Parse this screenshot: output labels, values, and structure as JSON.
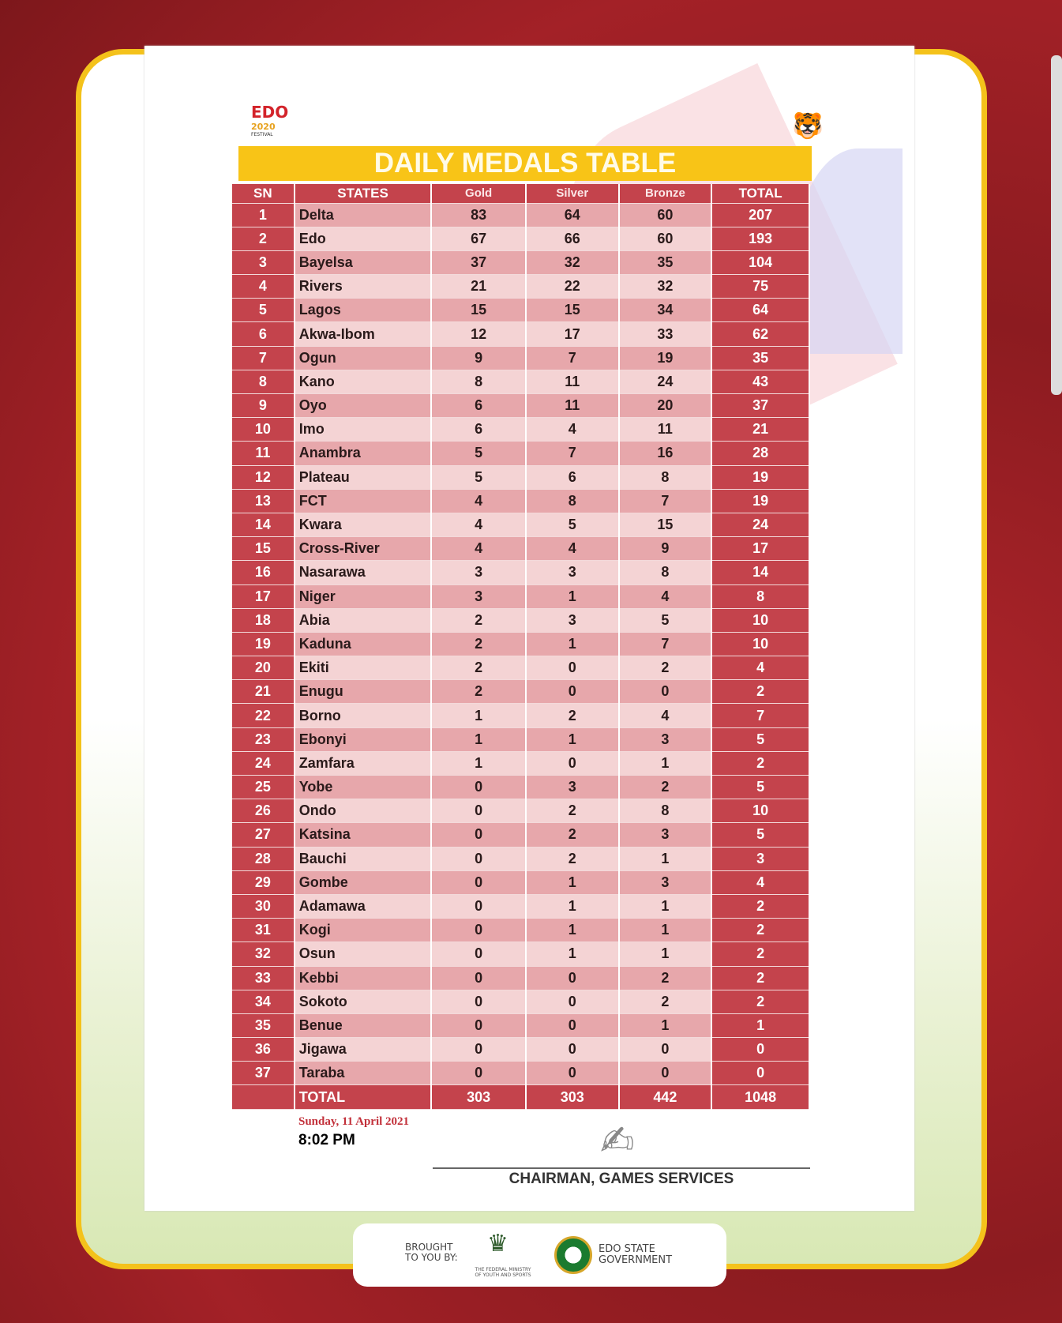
{
  "logo": {
    "text": "EDO",
    "year": "2020",
    "sub": "FESTIVAL"
  },
  "title": "DAILY MEDALS TABLE",
  "headers": [
    "SN",
    "STATES",
    "Gold",
    "Silver",
    "Bronze",
    "TOTAL"
  ],
  "rows": [
    [
      "1",
      "Delta",
      "83",
      "64",
      "60",
      "207"
    ],
    [
      "2",
      "Edo",
      "67",
      "66",
      "60",
      "193"
    ],
    [
      "3",
      "Bayelsa",
      "37",
      "32",
      "35",
      "104"
    ],
    [
      "4",
      "Rivers",
      "21",
      "22",
      "32",
      "75"
    ],
    [
      "5",
      "Lagos",
      "15",
      "15",
      "34",
      "64"
    ],
    [
      "6",
      "Akwa-Ibom",
      "12",
      "17",
      "33",
      "62"
    ],
    [
      "7",
      "Ogun",
      "9",
      "7",
      "19",
      "35"
    ],
    [
      "8",
      "Kano",
      "8",
      "11",
      "24",
      "43"
    ],
    [
      "9",
      "Oyo",
      "6",
      "11",
      "20",
      "37"
    ],
    [
      "10",
      "Imo",
      "6",
      "4",
      "11",
      "21"
    ],
    [
      "11",
      "Anambra",
      "5",
      "7",
      "16",
      "28"
    ],
    [
      "12",
      "Plateau",
      "5",
      "6",
      "8",
      "19"
    ],
    [
      "13",
      "FCT",
      "4",
      "8",
      "7",
      "19"
    ],
    [
      "14",
      "Kwara",
      "4",
      "5",
      "15",
      "24"
    ],
    [
      "15",
      "Cross-River",
      "4",
      "4",
      "9",
      "17"
    ],
    [
      "16",
      "Nasarawa",
      "3",
      "3",
      "8",
      "14"
    ],
    [
      "17",
      "Niger",
      "3",
      "1",
      "4",
      "8"
    ],
    [
      "18",
      "Abia",
      "2",
      "3",
      "5",
      "10"
    ],
    [
      "19",
      "Kaduna",
      "2",
      "1",
      "7",
      "10"
    ],
    [
      "20",
      "Ekiti",
      "2",
      "0",
      "2",
      "4"
    ],
    [
      "21",
      "Enugu",
      "2",
      "0",
      "0",
      "2"
    ],
    [
      "22",
      "Borno",
      "1",
      "2",
      "4",
      "7"
    ],
    [
      "23",
      "Ebonyi",
      "1",
      "1",
      "3",
      "5"
    ],
    [
      "24",
      "Zamfara",
      "1",
      "0",
      "1",
      "2"
    ],
    [
      "25",
      "Yobe",
      "0",
      "3",
      "2",
      "5"
    ],
    [
      "26",
      "Ondo",
      "0",
      "2",
      "8",
      "10"
    ],
    [
      "27",
      "Katsina",
      "0",
      "2",
      "3",
      "5"
    ],
    [
      "28",
      "Bauchi",
      "0",
      "2",
      "1",
      "3"
    ],
    [
      "29",
      "Gombe",
      "0",
      "1",
      "3",
      "4"
    ],
    [
      "30",
      "Adamawa",
      "0",
      "1",
      "1",
      "2"
    ],
    [
      "31",
      "Kogi",
      "0",
      "1",
      "1",
      "2"
    ],
    [
      "32",
      "Osun",
      "0",
      "1",
      "1",
      "2"
    ],
    [
      "33",
      "Kebbi",
      "0",
      "0",
      "2",
      "2"
    ],
    [
      "34",
      "Sokoto",
      "0",
      "0",
      "2",
      "2"
    ],
    [
      "35",
      "Benue",
      "0",
      "0",
      "1",
      "1"
    ],
    [
      "36",
      "Jigawa",
      "0",
      "0",
      "0",
      "0"
    ],
    [
      "37",
      "Taraba",
      "0",
      "0",
      "0",
      "0"
    ]
  ],
  "totals": [
    "",
    "TOTAL",
    "303",
    "303",
    "442",
    "1048"
  ],
  "date": "Sunday, 11 April 2021",
  "time": "8:02 PM",
  "signatory": "CHAIRMAN, GAMES SERVICES",
  "footer": {
    "brought": "BROUGHT TO YOU BY:",
    "ministry": "THE FEDERAL MINISTRY OF YOUTH AND SPORTS",
    "edo": "EDO STATE GOVERNMENT"
  },
  "colors": {
    "header_red": "#c4434c",
    "row_dark": "#e7a7ab",
    "row_light": "#f4d3d4",
    "banner_yellow": "#f8c417",
    "frame_yellow": "#f4c21b",
    "background_red": "#9e1f25"
  }
}
